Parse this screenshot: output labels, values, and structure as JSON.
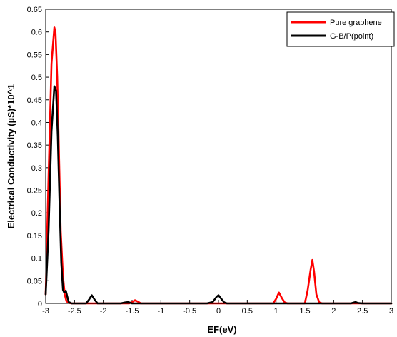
{
  "chart_data": {
    "type": "line",
    "title": "",
    "xlabel": "EF(eV)",
    "ylabel": "Electrical Conductivity (µS)*10^1",
    "xlim": [
      -3,
      3
    ],
    "ylim": [
      0,
      0.65
    ],
    "xticks": [
      "-3",
      "-2.5",
      "-2",
      "-1.5",
      "-1",
      "-0.5",
      "0",
      "0.5",
      "1",
      "1.5",
      "2",
      "2.5",
      "3"
    ],
    "yticks": [
      "0",
      "0.05",
      "0.1",
      "0.15",
      "0.2",
      "0.25",
      "0.3",
      "0.35",
      "0.4",
      "0.45",
      "0.5",
      "0.55",
      "0.6",
      "0.65"
    ],
    "grid": false,
    "legend_position": "top-right",
    "series": [
      {
        "name": "Pure graphene",
        "color": "#ff0000",
        "x": [
          -3.0,
          -2.95,
          -2.9,
          -2.85,
          -2.83,
          -2.8,
          -2.77,
          -2.74,
          -2.7,
          -2.67,
          -2.64,
          -2.6,
          -2.55,
          -2.5,
          -2.2,
          -1.55,
          -1.5,
          -1.45,
          -1.4,
          -1.35,
          -1.0,
          -0.5,
          0.0,
          0.5,
          0.95,
          1.0,
          1.05,
          1.1,
          1.15,
          1.2,
          1.25,
          1.5,
          1.55,
          1.6,
          1.63,
          1.66,
          1.7,
          1.75,
          1.8,
          2.0,
          2.5,
          3.0
        ],
        "y": [
          0.02,
          0.28,
          0.53,
          0.61,
          0.6,
          0.5,
          0.33,
          0.16,
          0.06,
          0.02,
          0.005,
          0.001,
          0.0,
          0.0,
          0.0,
          0.0,
          0.003,
          0.007,
          0.004,
          0.0,
          0.0,
          0.0,
          0.0,
          0.0,
          0.0,
          0.01,
          0.024,
          0.012,
          0.002,
          0.0,
          0.0,
          0.0,
          0.03,
          0.075,
          0.096,
          0.07,
          0.02,
          0.002,
          0.0,
          0.0,
          0.0,
          0.0
        ]
      },
      {
        "name": "G-B/P(point)",
        "color": "#000000",
        "x": [
          -3.0,
          -2.95,
          -2.9,
          -2.85,
          -2.82,
          -2.79,
          -2.76,
          -2.73,
          -2.7,
          -2.68,
          -2.65,
          -2.62,
          -2.6,
          -2.55,
          -2.3,
          -2.25,
          -2.2,
          -2.15,
          -2.1,
          -1.7,
          -1.62,
          -1.57,
          -1.5,
          -0.2,
          -0.1,
          -0.03,
          0.0,
          0.05,
          0.1,
          0.15,
          2.3,
          2.35,
          2.38,
          2.42,
          2.5,
          3.0
        ],
        "y": [
          0.02,
          0.16,
          0.38,
          0.48,
          0.47,
          0.37,
          0.22,
          0.09,
          0.03,
          0.024,
          0.028,
          0.012,
          0.003,
          0.0,
          0.0,
          0.008,
          0.018,
          0.008,
          0.0,
          0.0,
          0.002,
          0.003,
          0.0,
          0.0,
          0.003,
          0.015,
          0.018,
          0.01,
          0.002,
          0.0,
          0.0,
          0.002,
          0.003,
          0.001,
          0.0,
          0.0
        ]
      }
    ]
  }
}
